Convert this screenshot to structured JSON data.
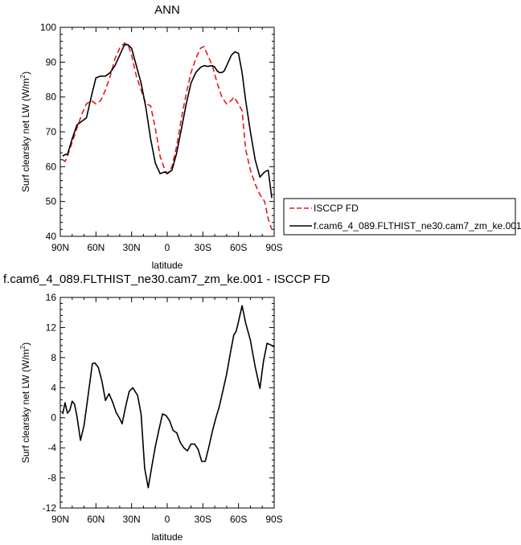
{
  "chart_data": [
    {
      "type": "line",
      "title": "ANN",
      "xlabel": "latitude",
      "ylabel": "Surf clearsky net LW (W/m²)",
      "xlim": [
        -90,
        90
      ],
      "ylim": [
        40,
        100
      ],
      "x_ticks": [
        -90,
        -60,
        -30,
        0,
        30,
        60,
        90
      ],
      "x_tick_labels": [
        "90N",
        "60N",
        "30N",
        "0",
        "30S",
        "60S",
        "90S"
      ],
      "y_ticks": [
        40,
        50,
        60,
        70,
        80,
        90,
        100
      ],
      "y_tick_labels": [
        "40",
        "50",
        "60",
        "70",
        "80",
        "90",
        "100"
      ],
      "legend_position": "outside-right-bottom",
      "series": [
        {
          "name": "ISCCP FD",
          "color": "#e41a1c",
          "dash": "dashed",
          "x": [
            -88,
            -86,
            -84,
            -80,
            -76,
            -72,
            -68,
            -64,
            -60,
            -56,
            -52,
            -48,
            -44,
            -40,
            -36,
            -33,
            -30,
            -26,
            -22,
            -18,
            -14,
            -10,
            -6,
            -2,
            0,
            4,
            8,
            12,
            16,
            20,
            24,
            28,
            31,
            34,
            38,
            42,
            46,
            50,
            54,
            56,
            58,
            60,
            63,
            66,
            70,
            74,
            78,
            82,
            85,
            88
          ],
          "values": [
            62,
            61.5,
            63,
            67,
            71,
            75,
            78,
            79,
            78,
            79,
            82,
            86,
            91,
            94,
            95.5,
            95,
            92,
            86,
            82,
            78,
            77.5,
            71,
            63,
            59,
            58,
            60,
            66,
            74,
            81,
            87,
            91,
            94,
            94.5,
            92,
            89,
            84,
            80,
            78,
            79,
            80,
            79,
            78,
            76,
            65,
            59,
            55,
            52,
            50,
            45,
            42
          ]
        },
        {
          "name": "f.cam6_4_089.FLTHIST_ne30.cam7_zm_ke.001",
          "color": "#000000",
          "dash": "solid",
          "x": [
            -88,
            -86,
            -84,
            -80,
            -76,
            -72,
            -68,
            -64,
            -60,
            -56,
            -52,
            -48,
            -44,
            -40,
            -36,
            -33,
            -30,
            -26,
            -22,
            -18,
            -14,
            -10,
            -6,
            -2,
            0,
            4,
            8,
            12,
            16,
            20,
            24,
            28,
            31,
            34,
            38,
            40,
            42,
            44,
            46,
            48,
            50,
            54,
            57,
            60,
            63,
            66,
            70,
            74,
            78,
            82,
            85,
            88
          ],
          "values": [
            63,
            63.5,
            63.5,
            68,
            72,
            73,
            74,
            80,
            85.5,
            86,
            86,
            87,
            89,
            92,
            95,
            95,
            94,
            89,
            84,
            77,
            68,
            61,
            58,
            58.5,
            58,
            59,
            64,
            71,
            78,
            84,
            87,
            88.5,
            89,
            88.8,
            89,
            88.6,
            87.5,
            87,
            87,
            87.5,
            89,
            92,
            93,
            92.5,
            87,
            79,
            70,
            62,
            57,
            58.5,
            59,
            51
          ]
        }
      ]
    },
    {
      "type": "line",
      "title": "f.cam6_4_089.FLTHIST_ne30.cam7_zm_ke.001 - ISCCP FD",
      "xlabel": "latitude",
      "ylabel": "Surf clearsky net LW (W/m²)",
      "xlim": [
        -90,
        90
      ],
      "ylim": [
        -12,
        16
      ],
      "x_ticks": [
        -90,
        -60,
        -30,
        0,
        30,
        60,
        90
      ],
      "x_tick_labels": [
        "90N",
        "60N",
        "30N",
        "0",
        "30S",
        "60S",
        "90S"
      ],
      "y_ticks": [
        -12,
        -8,
        -4,
        0,
        4,
        8,
        12,
        16
      ],
      "y_tick_labels": [
        "-12",
        "-8",
        "-4",
        "0",
        "4",
        "8",
        "12",
        "16"
      ],
      "series": [
        {
          "color": "#000000",
          "dash": "solid",
          "x": [
            -88,
            -86,
            -84,
            -82,
            -80,
            -78,
            -76,
            -73,
            -70,
            -67,
            -63,
            -61,
            -58,
            -55,
            -52,
            -49,
            -46,
            -43,
            -40,
            -38,
            -35,
            -32,
            -29,
            -25,
            -22,
            -19,
            -16,
            -13,
            -10,
            -7,
            -4,
            -1,
            2,
            5,
            8,
            11,
            14,
            17,
            20,
            23,
            26,
            29,
            32,
            35,
            38,
            41,
            44,
            47,
            50,
            53,
            56,
            58,
            60,
            63,
            66,
            70,
            74,
            78,
            81,
            84,
            87,
            90
          ],
          "values": [
            0.5,
            2,
            0.6,
            1,
            2.2,
            1.8,
            0.2,
            -3,
            -1,
            2.5,
            7.2,
            7.3,
            6.7,
            4.9,
            2.3,
            3.2,
            2.1,
            0.7,
            -0.1,
            -0.8,
            1.5,
            3.5,
            4,
            3,
            0.5,
            -6.7,
            -9.3,
            -6.5,
            -3.8,
            -1.6,
            0.5,
            0.3,
            -0.4,
            -1.7,
            -2,
            -3.3,
            -4,
            -4.4,
            -3.5,
            -3.5,
            -4.2,
            -5.8,
            -5.8,
            -3.9,
            -1.8,
            0,
            1.6,
            3.7,
            5.8,
            8.5,
            11,
            11.5,
            12.8,
            14.9,
            12.6,
            10.3,
            6.8,
            3.9,
            7.5,
            9.9,
            9.7,
            9.4
          ]
        }
      ]
    }
  ]
}
